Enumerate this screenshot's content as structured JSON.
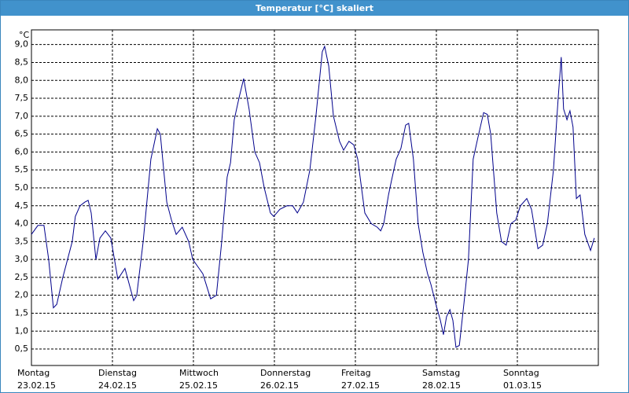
{
  "chart_data": {
    "type": "line",
    "title": "Temperatur [°C] skaliert",
    "y_unit": "°C",
    "xlim": [
      0,
      168
    ],
    "xticks": [
      {
        "value": 0,
        "label": "Montag"
      },
      {
        "value": 24,
        "label": "Dienstag"
      },
      {
        "value": 48,
        "label": "Mittwoch"
      },
      {
        "value": 72,
        "label": "Donnerstag"
      },
      {
        "value": 96,
        "label": "Freitag"
      },
      {
        "value": 120,
        "label": "Samstag"
      },
      {
        "value": 144,
        "label": "Sonntag"
      }
    ],
    "xtick_dates": [
      "23.02.15",
      "24.02.15",
      "25.02.15",
      "26.02.15",
      "27.02.15",
      "28.02.15",
      "01.03.15"
    ],
    "ylim": [
      0.04,
      9.41
    ],
    "yticks": [
      {
        "value": 0.5,
        "label": "0,5"
      },
      {
        "value": 1.0,
        "label": "1,0"
      },
      {
        "value": 1.5,
        "label": "1,5"
      },
      {
        "value": 2.0,
        "label": "2,0"
      },
      {
        "value": 2.5,
        "label": "2,5"
      },
      {
        "value": 3.0,
        "label": "3,0"
      },
      {
        "value": 3.5,
        "label": "3,5"
      },
      {
        "value": 4.0,
        "label": "4,0"
      },
      {
        "value": 4.5,
        "label": "4,5"
      },
      {
        "value": 5.0,
        "label": "5,0"
      },
      {
        "value": 5.5,
        "label": "5,5"
      },
      {
        "value": 6.0,
        "label": "6,0"
      },
      {
        "value": 6.5,
        "label": "6,5"
      },
      {
        "value": 7.0,
        "label": "7,0"
      },
      {
        "value": 7.5,
        "label": "7,5"
      },
      {
        "value": 8.0,
        "label": "8,0"
      },
      {
        "value": 8.5,
        "label": "8,5"
      },
      {
        "value": 9.0,
        "label": "9,0"
      }
    ],
    "grid": true,
    "x": [
      0,
      1.9,
      3.7,
      5.1,
      6.5,
      7.5,
      9.3,
      12.1,
      13.0,
      14.4,
      15.8,
      16.8,
      17.7,
      19.1,
      20.3,
      21.9,
      23.5,
      25.6,
      27.7,
      30.3,
      31.2,
      33.1,
      35.4,
      37.3,
      38.2,
      40.1,
      41.5,
      42.9,
      44.7,
      46.6,
      47.8,
      50.8,
      53.1,
      54.8,
      56.4,
      58.0,
      59.0,
      60.1,
      61.5,
      62.9,
      64.5,
      66.2,
      67.6,
      69.0,
      70.8,
      71.8,
      73.6,
      75.7,
      77.4,
      78.8,
      80.6,
      82.5,
      84.3,
      86.2,
      86.9,
      88.1,
      89.5,
      91.3,
      92.5,
      94.1,
      95.5,
      96.7,
      98.8,
      100.7,
      102.5,
      103.5,
      104.4,
      105.8,
      106.7,
      108.1,
      109.5,
      110.9,
      111.8,
      113.2,
      114.6,
      116.0,
      117.4,
      118.4,
      120.0,
      121.2,
      122.1,
      123.0,
      124.0,
      124.9,
      125.8,
      126.8,
      128.2,
      129.5,
      130.9,
      132.3,
      134.0,
      135.1,
      136.1,
      137.9,
      139.3,
      140.7,
      142.1,
      143.5,
      144.9,
      146.8,
      148.2,
      150.1,
      151.5,
      152.9,
      154.7,
      156.1,
      157.0,
      157.7,
      158.7,
      159.6,
      160.5,
      161.5,
      162.6,
      164.0,
      165.7,
      166.8
    ],
    "series": [
      {
        "name": "Temperatur",
        "color": "#00008b",
        "values": [
          3.7,
          3.95,
          3.95,
          3.0,
          1.65,
          1.75,
          2.5,
          3.5,
          4.2,
          4.5,
          4.6,
          4.65,
          4.3,
          3.0,
          3.6,
          3.8,
          3.6,
          2.45,
          2.75,
          1.85,
          2.0,
          3.5,
          5.8,
          6.65,
          6.5,
          4.6,
          4.1,
          3.7,
          3.9,
          3.5,
          3.0,
          2.6,
          1.9,
          2.0,
          3.5,
          5.3,
          5.7,
          6.9,
          7.5,
          8.05,
          7.2,
          6.0,
          5.7,
          5.0,
          4.3,
          4.2,
          4.4,
          4.5,
          4.5,
          4.3,
          4.6,
          5.5,
          7.0,
          8.8,
          8.95,
          8.4,
          7.0,
          6.3,
          6.05,
          6.3,
          6.2,
          5.8,
          4.3,
          4.0,
          3.9,
          3.8,
          4.0,
          4.8,
          5.2,
          5.8,
          6.1,
          6.75,
          6.8,
          5.8,
          4.0,
          3.2,
          2.6,
          2.3,
          1.7,
          1.3,
          0.9,
          1.4,
          1.6,
          1.3,
          0.55,
          0.6,
          1.8,
          3.0,
          5.8,
          6.4,
          7.1,
          7.05,
          6.5,
          4.3,
          3.5,
          3.4,
          4.0,
          4.1,
          4.5,
          4.7,
          4.4,
          3.3,
          3.4,
          4.0,
          5.5,
          7.5,
          8.65,
          7.2,
          6.9,
          7.15,
          6.7,
          4.7,
          4.8,
          3.7,
          3.25,
          3.6
        ]
      }
    ]
  }
}
